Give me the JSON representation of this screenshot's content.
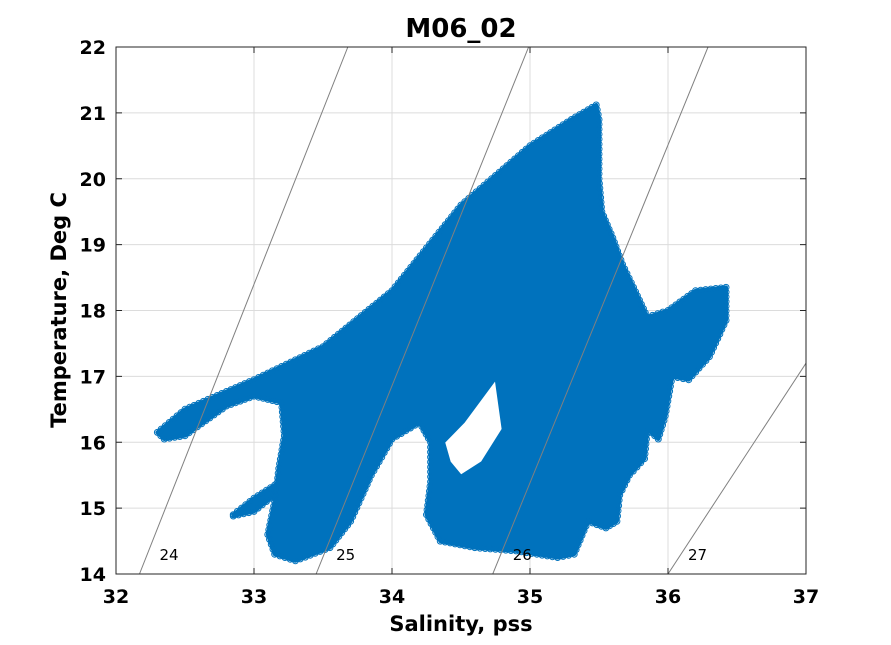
{
  "chart_data": {
    "type": "scatter",
    "title": "M06_02",
    "xlabel": "Salinity, pss",
    "ylabel": "Temperature, Deg C",
    "xlim": [
      32,
      37
    ],
    "ylim": [
      14,
      22
    ],
    "xticks": [
      "32",
      "33",
      "34",
      "35",
      "36",
      "37"
    ],
    "yticks": [
      "14",
      "15",
      "16",
      "17",
      "18",
      "19",
      "20",
      "21",
      "22"
    ],
    "grid": true,
    "marker_color": "#0072BD",
    "isopycnal_color": "#808080",
    "isopycnals": [
      {
        "label": "24",
        "points": [
          [
            32.17,
            14
          ],
          [
            33.68,
            22
          ]
        ]
      },
      {
        "label": "25",
        "points": [
          [
            33.45,
            14
          ],
          [
            34.99,
            22
          ]
        ]
      },
      {
        "label": "26",
        "points": [
          [
            34.73,
            14
          ],
          [
            36.29,
            22
          ]
        ]
      },
      {
        "label": "27",
        "points": [
          [
            36.0,
            14
          ],
          [
            37.0,
            17.2
          ]
        ]
      }
    ],
    "data_region": {
      "main_body": [
        [
          32.3,
          16.15
        ],
        [
          32.5,
          16.5
        ],
        [
          33.0,
          16.95
        ],
        [
          33.5,
          17.45
        ],
        [
          34.0,
          18.3
        ],
        [
          34.5,
          19.6
        ],
        [
          35.0,
          20.5
        ],
        [
          35.3,
          20.9
        ],
        [
          35.48,
          21.12
        ],
        [
          35.5,
          20.9
        ],
        [
          35.5,
          20.0
        ],
        [
          35.52,
          19.5
        ],
        [
          35.6,
          19.1
        ],
        [
          35.67,
          18.7
        ],
        [
          35.75,
          18.35
        ],
        [
          35.85,
          17.9
        ],
        [
          36.0,
          18.0
        ],
        [
          36.2,
          18.3
        ],
        [
          36.42,
          18.35
        ],
        [
          36.42,
          17.85
        ],
        [
          36.3,
          17.3
        ],
        [
          36.15,
          16.95
        ],
        [
          36.03,
          17.0
        ],
        [
          35.98,
          16.4
        ],
        [
          35.93,
          16.05
        ],
        [
          35.85,
          16.2
        ],
        [
          35.83,
          15.75
        ],
        [
          35.72,
          15.5
        ],
        [
          35.65,
          15.2
        ],
        [
          35.63,
          14.8
        ],
        [
          35.55,
          14.7
        ],
        [
          35.42,
          14.8
        ],
        [
          35.32,
          14.3
        ],
        [
          35.2,
          14.25
        ],
        [
          34.9,
          14.35
        ],
        [
          34.6,
          14.4
        ],
        [
          34.35,
          14.5
        ],
        [
          34.25,
          14.9
        ],
        [
          34.28,
          15.4
        ],
        [
          34.28,
          16.0
        ],
        [
          34.2,
          16.3
        ],
        [
          34.0,
          16.05
        ],
        [
          33.85,
          15.5
        ],
        [
          33.7,
          14.8
        ],
        [
          33.55,
          14.4
        ],
        [
          33.3,
          14.2
        ],
        [
          33.15,
          14.3
        ],
        [
          33.1,
          14.6
        ],
        [
          33.15,
          15.1
        ],
        [
          33.18,
          15.6
        ],
        [
          33.22,
          16.1
        ],
        [
          33.2,
          16.6
        ],
        [
          33.0,
          16.7
        ],
        [
          32.8,
          16.55
        ],
        [
          32.5,
          16.1
        ],
        [
          32.35,
          16.05
        ]
      ],
      "left_tail": [
        [
          32.85,
          14.9
        ],
        [
          33.0,
          15.15
        ],
        [
          33.15,
          15.35
        ],
        [
          33.15,
          15.2
        ],
        [
          33.0,
          14.95
        ],
        [
          32.85,
          14.88
        ]
      ],
      "notches": [
        [
          34.38,
          16.0
        ],
        [
          34.52,
          16.3
        ],
        [
          34.75,
          16.95
        ],
        [
          34.8,
          16.2
        ],
        [
          34.65,
          15.7
        ],
        [
          34.5,
          15.5
        ],
        [
          34.42,
          15.7
        ]
      ]
    }
  }
}
